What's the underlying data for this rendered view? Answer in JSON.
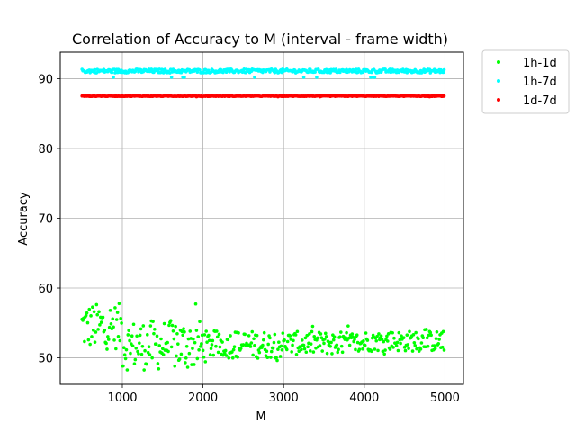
{
  "chart_data": {
    "type": "scatter",
    "title": "Correlation of Accuracy to M (interval - frame width)",
    "xlabel": "M",
    "ylabel": "Accuracy",
    "xlim": [
      230,
      5230
    ],
    "ylim": [
      46.2,
      93.8
    ],
    "xticks": [
      1000,
      2000,
      3000,
      4000,
      5000
    ],
    "yticks": [
      50,
      60,
      70,
      80,
      90
    ],
    "grid": true,
    "legend_position": "outside-top-right",
    "x": {
      "start": 500,
      "end": 4990,
      "step": 10
    },
    "series": [
      {
        "name": "1h-1d",
        "color": "#00ff00",
        "summary": {
          "segments": [
            {
              "x_range": [
                500,
                1000
              ],
              "mean": 54.5,
              "min": 50.0,
              "max": 58.8
            },
            {
              "x_range": [
                1000,
                2000
              ],
              "mean": 51.8,
              "min": 48.2,
              "max": 57.8
            },
            {
              "x_range": [
                2000,
                3000
              ],
              "mean": 51.9,
              "min": 48.9,
              "max": 54.2
            },
            {
              "x_range": [
                3000,
                4000
              ],
              "mean": 52.1,
              "min": 50.2,
              "max": 54.7
            },
            {
              "x_range": [
                4000,
                5000
              ],
              "mean": 52.4,
              "min": 50.5,
              "max": 54.5
            }
          ]
        }
      },
      {
        "name": "1h-7d",
        "color": "#00ffff",
        "summary": {
          "mean": 91.1,
          "min": 90.2,
          "max": 91.3
        }
      },
      {
        "name": "1d-7d",
        "color": "#ff0000",
        "summary": {
          "mean": 87.5,
          "min": 87.4,
          "max": 87.6
        }
      }
    ]
  }
}
